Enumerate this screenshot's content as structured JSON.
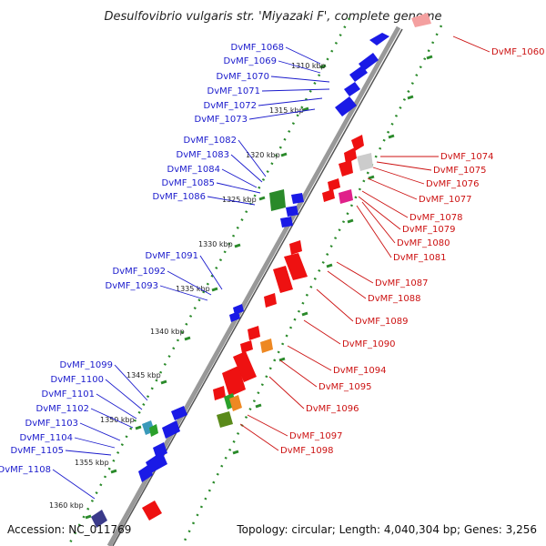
{
  "title": "Desulfovibrio vulgaris str. 'Miyazaki F', complete genome",
  "footer": {
    "accession": "Accession: NC_011769",
    "summary": "Topology: circular; Length: 4,040,304 bp; Genes: 3,256"
  },
  "colors": {
    "forward_gene": "#1a1ae6",
    "reverse_gene": "#ee1111",
    "label_forward": "#1a1acc",
    "label_reverse": "#cc1111",
    "backbone": "#888888",
    "tick": "#2a8a2a"
  },
  "scale_labels": [
    "1310 kbp",
    "1315 kbp",
    "1320 kbp",
    "1325 kbp",
    "1330 kbp",
    "1335 kbp",
    "1340 kbp",
    "1345 kbp",
    "1350 kbp",
    "1355 kbp",
    "1360 kbp"
  ],
  "forward_genes": [
    "DvMF_1068",
    "DvMF_1069",
    "DvMF_1070",
    "DvMF_1071",
    "DvMF_1072",
    "DvMF_1073",
    "DvMF_1082",
    "DvMF_1083",
    "DvMF_1084",
    "DvMF_1085",
    "DvMF_1086",
    "DvMF_1091",
    "DvMF_1092",
    "DvMF_1093",
    "DvMF_1099",
    "DvMF_1100",
    "DvMF_1101",
    "DvMF_1102",
    "DvMF_1103",
    "DvMF_1104",
    "DvMF_1105",
    "DvMF_1108"
  ],
  "reverse_genes": [
    "DvMF_1060",
    "DvMF_1074",
    "DvMF_1075",
    "DvMF_1076",
    "DvMF_1077",
    "DvMF_1078",
    "DvMF_1079",
    "DvMF_1080",
    "DvMF_1081",
    "DvMF_1087",
    "DvMF_1088",
    "DvMF_1089",
    "DvMF_1090",
    "DvMF_1094",
    "DvMF_1095",
    "DvMF_1096",
    "DvMF_1097",
    "DvMF_1098"
  ]
}
